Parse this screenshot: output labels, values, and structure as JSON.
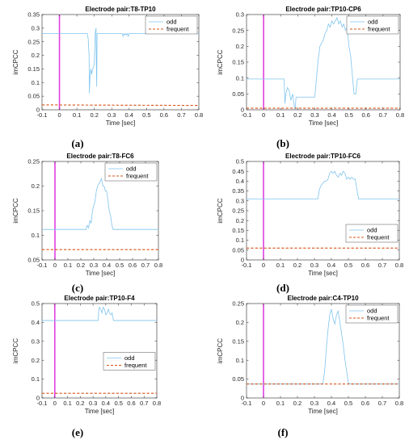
{
  "figure": {
    "panels": [
      {
        "caption": "(a)"
      },
      {
        "caption": "(b)"
      },
      {
        "caption": "(c)"
      },
      {
        "caption": "(d)"
      },
      {
        "caption": "(e)"
      },
      {
        "caption": "(f)"
      }
    ]
  },
  "colors": {
    "odd": "#7fc4ee",
    "frequent": "#d95319",
    "stimulus_marker": "#e040e0",
    "axis": "#262626",
    "legend_border": "#262626"
  },
  "chart_data": [
    {
      "type": "line",
      "title": "Electrode pair:T8-TP10",
      "xlabel": "Time [sec]",
      "ylabel": "imCPCC",
      "xlim": [
        -0.1,
        0.8
      ],
      "ylim": [
        0,
        0.35
      ],
      "x_ticks": [
        -0.1,
        0,
        0.1,
        0.2,
        0.3,
        0.4,
        0.5,
        0.6,
        0.7,
        0.8
      ],
      "x_tick_labels": [
        "-0.1",
        "0",
        "0.1",
        "0.2",
        "0.3",
        "0.4",
        "0.5",
        "0.6",
        "0.7",
        "0.8"
      ],
      "y_ticks": [
        0,
        0.05,
        0.1,
        0.15,
        0.2,
        0.25,
        0.3,
        0.35
      ],
      "y_tick_labels": [
        "0",
        "0.05",
        "0.1",
        "0.15",
        "0.2",
        "0.25",
        "0.3",
        "0.35"
      ],
      "legend_position": "top-right",
      "stimulus_marker_x": 0,
      "grid": false,
      "series": [
        {
          "name": "odd",
          "style": "solid",
          "x": [
            -0.1,
            0.16,
            0.165,
            0.17,
            0.172,
            0.175,
            0.18,
            0.185,
            0.19,
            0.195,
            0.2,
            0.205,
            0.21,
            0.212,
            0.214,
            0.216,
            0.22,
            0.225,
            0.23,
            0.235,
            0.24,
            0.26,
            0.262,
            0.3,
            0.36,
            0.365,
            0.37,
            0.375,
            0.38,
            0.385,
            0.39,
            0.395,
            0.4,
            0.8
          ],
          "y": [
            0.28,
            0.28,
            0.26,
            0.2,
            0.06,
            0.12,
            0.15,
            0.13,
            0.15,
            0.155,
            0.17,
            0.28,
            0.3,
            0.16,
            0.085,
            0.28,
            0.28,
            0.28,
            0.28,
            0.28,
            0.28,
            0.28,
            0.28,
            0.28,
            0.28,
            0.27,
            0.28,
            0.275,
            0.28,
            0.275,
            0.28,
            0.27,
            0.28,
            0.28
          ]
        },
        {
          "name": "frequent",
          "style": "dashed",
          "x": [
            -0.1,
            0.8
          ],
          "y": [
            0.018,
            0.016
          ]
        }
      ]
    },
    {
      "type": "line",
      "title": "Electrode pair:TP10-CP6",
      "xlabel": "Time [sec]",
      "ylabel": "imCPCC",
      "xlim": [
        -0.1,
        0.8
      ],
      "ylim": [
        0,
        0.3
      ],
      "x_ticks": [
        -0.1,
        0,
        0.1,
        0.2,
        0.3,
        0.4,
        0.5,
        0.6,
        0.7,
        0.8
      ],
      "x_tick_labels": [
        "-0.1",
        "0",
        "0.1",
        "0.2",
        "0.3",
        "0.4",
        "0.5",
        "0.6",
        "0.7",
        "0.8"
      ],
      "y_ticks": [
        0,
        0.05,
        0.1,
        0.15,
        0.2,
        0.25,
        0.3
      ],
      "y_tick_labels": [
        "0",
        "0.05",
        "0.1",
        "0.15",
        "0.2",
        "0.25",
        "0.3"
      ],
      "legend_position": "top-right",
      "stimulus_marker_x": 0,
      "grid": false,
      "series": [
        {
          "name": "odd",
          "style": "solid",
          "x": [
            -0.1,
            0.12,
            0.125,
            0.13,
            0.14,
            0.15,
            0.16,
            0.17,
            0.18,
            0.185,
            0.19,
            0.2,
            0.205,
            0.3,
            0.31,
            0.32,
            0.33,
            0.34,
            0.35,
            0.36,
            0.37,
            0.38,
            0.39,
            0.4,
            0.41,
            0.42,
            0.43,
            0.44,
            0.45,
            0.46,
            0.47,
            0.48,
            0.49,
            0.5,
            0.51,
            0.52,
            0.53,
            0.54,
            0.55,
            0.8
          ],
          "y": [
            0.097,
            0.097,
            0.02,
            0.05,
            0.07,
            0.06,
            0.03,
            0.05,
            0.01,
            0.0,
            0.04,
            0.04,
            0.04,
            0.04,
            0.1,
            0.16,
            0.2,
            0.21,
            0.22,
            0.24,
            0.25,
            0.27,
            0.26,
            0.28,
            0.27,
            0.28,
            0.29,
            0.27,
            0.28,
            0.26,
            0.27,
            0.25,
            0.26,
            0.2,
            0.17,
            0.11,
            0.05,
            0.05,
            0.097,
            0.097
          ]
        },
        {
          "name": "frequent",
          "style": "dashed",
          "x": [
            -0.1,
            0.8
          ],
          "y": [
            0.005,
            0.005
          ]
        }
      ]
    },
    {
      "type": "line",
      "title": "Electrode pair:T8-FC6",
      "xlabel": "Time [sec]",
      "ylabel": "imCPCC",
      "xlim": [
        -0.1,
        0.8
      ],
      "ylim": [
        0.05,
        0.25
      ],
      "x_ticks": [
        -0.1,
        0,
        0.1,
        0.2,
        0.3,
        0.4,
        0.5,
        0.6,
        0.7,
        0.8
      ],
      "x_tick_labels": [
        "-0.1",
        "0",
        "0.1",
        "0.2",
        "0.3",
        "0.4",
        "0.5",
        "0.6",
        "0.7",
        "0.8"
      ],
      "y_ticks": [
        0.05,
        0.1,
        0.15,
        0.2,
        0.25
      ],
      "y_tick_labels": [
        "0.05",
        "0.1",
        "0.15",
        "0.2",
        "0.25"
      ],
      "legend_position": "top-right",
      "stimulus_marker_x": 0,
      "grid": false,
      "series": [
        {
          "name": "odd",
          "style": "solid",
          "x": [
            -0.1,
            0.24,
            0.25,
            0.26,
            0.27,
            0.28,
            0.29,
            0.3,
            0.31,
            0.32,
            0.33,
            0.34,
            0.35,
            0.36,
            0.37,
            0.38,
            0.39,
            0.4,
            0.41,
            0.42,
            0.43,
            0.44,
            0.45,
            0.8
          ],
          "y": [
            0.112,
            0.112,
            0.12,
            0.115,
            0.13,
            0.125,
            0.15,
            0.16,
            0.17,
            0.19,
            0.2,
            0.205,
            0.21,
            0.215,
            0.2,
            0.2,
            0.19,
            0.19,
            0.17,
            0.15,
            0.14,
            0.12,
            0.112,
            0.112
          ]
        },
        {
          "name": "frequent",
          "style": "dashed",
          "x": [
            -0.1,
            0.8
          ],
          "y": [
            0.071,
            0.071
          ]
        }
      ]
    },
    {
      "type": "line",
      "title": "Electrode pair:TP10-FC6",
      "xlabel": "Time [sec]",
      "ylabel": "imCPCC",
      "xlim": [
        -0.1,
        0.8
      ],
      "ylim": [
        0,
        0.5
      ],
      "x_ticks": [
        -0.1,
        0,
        0.1,
        0.2,
        0.3,
        0.4,
        0.5,
        0.6,
        0.7,
        0.8
      ],
      "x_tick_labels": [
        "-0.1",
        "0",
        "0.1",
        "0.2",
        "0.3",
        "0.4",
        "0.5",
        "0.6",
        "0.7",
        "0.8"
      ],
      "y_ticks": [
        0,
        0.05,
        0.1,
        0.15,
        0.2,
        0.25,
        0.3,
        0.35,
        0.4,
        0.45,
        0.5
      ],
      "y_tick_labels": [
        "0",
        "0.05",
        "0.1",
        "0.15",
        "0.2",
        "0.25",
        "0.3",
        "0.35",
        "0.4",
        "0.45",
        "0.5"
      ],
      "legend_position": "bottom-right",
      "stimulus_marker_x": 0,
      "grid": false,
      "series": [
        {
          "name": "odd",
          "style": "solid",
          "x": [
            -0.1,
            0.32,
            0.33,
            0.34,
            0.35,
            0.36,
            0.37,
            0.38,
            0.39,
            0.4,
            0.41,
            0.42,
            0.43,
            0.44,
            0.45,
            0.46,
            0.47,
            0.48,
            0.49,
            0.5,
            0.51,
            0.52,
            0.53,
            0.54,
            0.55,
            0.56,
            0.8
          ],
          "y": [
            0.31,
            0.31,
            0.36,
            0.38,
            0.39,
            0.4,
            0.4,
            0.41,
            0.44,
            0.45,
            0.44,
            0.45,
            0.43,
            0.42,
            0.44,
            0.43,
            0.45,
            0.44,
            0.41,
            0.42,
            0.41,
            0.42,
            0.41,
            0.41,
            0.36,
            0.31,
            0.31
          ]
        },
        {
          "name": "frequent",
          "style": "dashed",
          "x": [
            -0.1,
            0.8
          ],
          "y": [
            0.06,
            0.06
          ]
        }
      ]
    },
    {
      "type": "line",
      "title": "Electrode pair:TP10-F4",
      "xlabel": "Time [sec]",
      "ylabel": "imCPCC",
      "xlim": [
        -0.1,
        0.8
      ],
      "ylim": [
        0,
        0.5
      ],
      "x_ticks": [
        -0.1,
        0,
        0.1,
        0.2,
        0.3,
        0.4,
        0.5,
        0.6,
        0.7,
        0.8
      ],
      "x_tick_labels": [
        "-0.1",
        "0",
        "0.1",
        "0.2",
        "0.3",
        "0.4",
        "0.5",
        "0.6",
        "0.7",
        "0.8"
      ],
      "y_ticks": [
        0,
        0.1,
        0.2,
        0.3,
        0.4,
        0.5
      ],
      "y_tick_labels": [
        "0",
        "0.1",
        "0.2",
        "0.3",
        "0.4",
        "0.5"
      ],
      "legend_position": "center-right",
      "stimulus_marker_x": 0,
      "grid": false,
      "series": [
        {
          "name": "odd",
          "style": "solid",
          "x": [
            -0.1,
            0.34,
            0.345,
            0.35,
            0.36,
            0.37,
            0.38,
            0.39,
            0.4,
            0.41,
            0.42,
            0.43,
            0.44,
            0.45,
            0.46,
            0.47,
            0.8
          ],
          "y": [
            0.41,
            0.41,
            0.46,
            0.48,
            0.47,
            0.45,
            0.48,
            0.47,
            0.44,
            0.45,
            0.47,
            0.45,
            0.44,
            0.45,
            0.41,
            0.41,
            0.41
          ]
        },
        {
          "name": "frequent",
          "style": "dashed",
          "x": [
            -0.1,
            0.8
          ],
          "y": [
            0.025,
            0.025
          ]
        }
      ]
    },
    {
      "type": "line",
      "title": "Electrode pair:C4-TP10",
      "xlabel": "Time [sec]",
      "ylabel": "imCPCC",
      "xlim": [
        -0.1,
        0.8
      ],
      "ylim": [
        0,
        0.25
      ],
      "x_ticks": [
        -0.1,
        0,
        0.1,
        0.2,
        0.3,
        0.4,
        0.5,
        0.6,
        0.7,
        0.8
      ],
      "x_tick_labels": [
        "-0.1",
        "0",
        "0.1",
        "0.2",
        "0.3",
        "0.4",
        "0.5",
        "0.6",
        "0.7",
        "0.8"
      ],
      "y_ticks": [
        0,
        0.05,
        0.1,
        0.15,
        0.2,
        0.25
      ],
      "y_tick_labels": [
        "0",
        "0.05",
        "0.1",
        "0.15",
        "0.2",
        "0.25"
      ],
      "legend_position": "top-right",
      "stimulus_marker_x": 0,
      "grid": false,
      "series": [
        {
          "name": "odd",
          "style": "solid",
          "x": [
            -0.1,
            0.35,
            0.36,
            0.37,
            0.38,
            0.39,
            0.4,
            0.41,
            0.42,
            0.43,
            0.44,
            0.45,
            0.46,
            0.47,
            0.48,
            0.49,
            0.5,
            0.51,
            0.52,
            0.8
          ],
          "y": [
            0.037,
            0.037,
            0.07,
            0.13,
            0.18,
            0.22,
            0.235,
            0.21,
            0.195,
            0.22,
            0.23,
            0.2,
            0.17,
            0.14,
            0.1,
            0.07,
            0.04,
            0.037,
            0.037,
            0.037
          ]
        },
        {
          "name": "frequent",
          "style": "dashed",
          "x": [
            -0.1,
            0.8
          ],
          "y": [
            0.037,
            0.037
          ]
        }
      ]
    }
  ]
}
